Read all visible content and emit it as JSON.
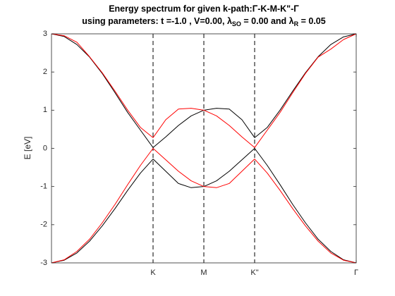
{
  "chart_data": {
    "type": "line",
    "title": "Energy spectrum for given k-path:Γ-K-M-K\"-Γ",
    "subtitle_parts": [
      "using parameters: t =-1.0 , V=0.00, ",
      "λ",
      "SO",
      " = 0.00 and ",
      "λ",
      "R",
      " = 0.05"
    ],
    "ylabel": "E [eV]",
    "x": [
      0,
      0.25,
      0.5,
      0.75,
      1,
      1.25,
      1.5,
      1.75,
      2,
      2.25,
      2.5,
      2.75,
      3,
      3.25,
      3.5,
      3.75,
      4,
      4.25,
      4.5,
      4.75,
      5,
      5.25,
      5.5,
      5.75,
      6
    ],
    "series": [
      {
        "color": "#000000",
        "values": [
          3.0,
          2.93,
          2.72,
          2.39,
          1.96,
          1.46,
          0.94,
          0.48,
          0.02,
          0.3,
          0.6,
          0.85,
          1.0,
          1.05,
          1.03,
          0.75,
          0.28,
          0.55,
          1.0,
          1.5,
          1.98,
          2.4,
          2.72,
          2.92,
          3.0
        ]
      },
      {
        "color": "#000000",
        "values": [
          -3.0,
          -2.93,
          -2.74,
          -2.43,
          -2.03,
          -1.58,
          -1.1,
          -0.65,
          -0.28,
          -0.6,
          -0.92,
          -1.03,
          -1.0,
          -0.85,
          -0.6,
          -0.3,
          0.0,
          -0.45,
          -0.95,
          -1.47,
          -1.95,
          -2.38,
          -2.7,
          -2.92,
          -3.0
        ]
      },
      {
        "color": "#ff0000",
        "values": [
          3.0,
          2.95,
          2.78,
          2.4,
          1.98,
          1.5,
          1.0,
          0.55,
          0.28,
          0.75,
          1.03,
          1.05,
          1.0,
          0.85,
          0.6,
          0.3,
          0.02,
          0.48,
          0.94,
          1.46,
          1.96,
          2.39,
          2.6,
          2.85,
          3.0
        ]
      },
      {
        "color": "#ff0000",
        "values": [
          -3.0,
          -2.92,
          -2.7,
          -2.38,
          -1.95,
          -1.47,
          -0.95,
          -0.45,
          0.0,
          -0.3,
          -0.6,
          -0.85,
          -1.0,
          -1.03,
          -0.92,
          -0.6,
          -0.28,
          -0.65,
          -1.1,
          -1.58,
          -2.03,
          -2.43,
          -2.74,
          -2.93,
          -3.0
        ]
      }
    ],
    "xlim": [
      0,
      6
    ],
    "xticks": [
      {
        "value": 2,
        "label": "K"
      },
      {
        "value": 3,
        "label": "M"
      },
      {
        "value": 4,
        "label": "K\""
      },
      {
        "value": 6,
        "label": "Γ"
      }
    ],
    "ylim": [
      -3,
      3
    ],
    "yticks": [
      -3,
      -2,
      -1,
      0,
      1,
      2,
      3
    ],
    "xgrid_dashed": true
  }
}
